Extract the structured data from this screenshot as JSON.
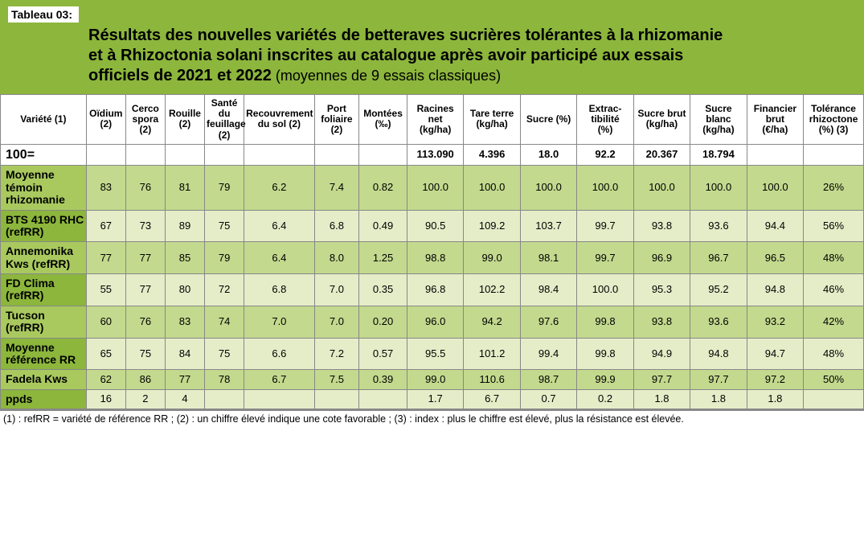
{
  "header": {
    "tab": "Tableau 03:",
    "title_l1": "Résultats des nouvelles variétés de betteraves sucrières tolérantes à la rhizomanie",
    "title_l2": "et à Rhizoctonia solani inscrites au catalogue après avoir participé aux essais",
    "title_l3": "officiels de 2021 et 2022",
    "title_sub": " (moyennes de 9 essais classiques)"
  },
  "columns": [
    "Variété (1)",
    "Oïdium (2)",
    "Cerco spora (2)",
    "Rouille (2)",
    "Santé du feuillage (2)",
    "Recouvrement du sol (2)",
    "Port foliaire (2)",
    "Montées (‰)",
    "Racines net (kg/ha)",
    "Tare terre (kg/ha)",
    "Sucre (%)",
    "Extrac-tibilité (%)",
    "Sucre brut (kg/ha)",
    "Sucre blanc (kg/ha)",
    "Financier brut (€/ha)",
    "Tolérance rhizoctone (%) (3)"
  ],
  "rows": [
    {
      "label": "100=",
      "cls": "r100",
      "cells": [
        "",
        "",
        "",
        "",
        "",
        "",
        "",
        "113.090",
        "4.396",
        "18.0",
        "92.2",
        "20.367",
        "18.794",
        "",
        ""
      ]
    },
    {
      "label": "Moyenne témoin rhizomanie",
      "cls": "alt0 altL0",
      "cells": [
        "83",
        "76",
        "81",
        "79",
        "6.2",
        "7.4",
        "0.82",
        "100.0",
        "100.0",
        "100.0",
        "100.0",
        "100.0",
        "100.0",
        "100.0",
        "26%"
      ]
    },
    {
      "label": "BTS 4190 RHC (refRR)",
      "cls": "alt1 altL1",
      "cells": [
        "67",
        "73",
        "89",
        "75",
        "6.4",
        "6.8",
        "0.49",
        "90.5",
        "109.2",
        "103.7",
        "99.7",
        "93.8",
        "93.6",
        "94.4",
        "56%"
      ]
    },
    {
      "label": "Annemonika Kws (refRR)",
      "cls": "alt0 altL0",
      "cells": [
        "77",
        "77",
        "85",
        "79",
        "6.4",
        "8.0",
        "1.25",
        "98.8",
        "99.0",
        "98.1",
        "99.7",
        "96.9",
        "96.7",
        "96.5",
        "48%"
      ]
    },
    {
      "label": "FD Clima (refRR)",
      "cls": "alt1 altL1",
      "cells": [
        "55",
        "77",
        "80",
        "72",
        "6.8",
        "7.0",
        "0.35",
        "96.8",
        "102.2",
        "98.4",
        "100.0",
        "95.3",
        "95.2",
        "94.8",
        "46%"
      ]
    },
    {
      "label": "Tucson (refRR)",
      "cls": "alt0 altL0",
      "cells": [
        "60",
        "76",
        "83",
        "74",
        "7.0",
        "7.0",
        "0.20",
        "96.0",
        "94.2",
        "97.6",
        "99.8",
        "93.8",
        "93.6",
        "93.2",
        "42%"
      ]
    },
    {
      "label": "Moyenne référence RR",
      "cls": "alt1 altL1",
      "cells": [
        "65",
        "75",
        "84",
        "75",
        "6.6",
        "7.2",
        "0.57",
        "95.5",
        "101.2",
        "99.4",
        "99.8",
        "94.9",
        "94.8",
        "94.7",
        "48%"
      ]
    },
    {
      "label": "Fadela Kws",
      "cls": "alt0 altL0",
      "cells": [
        "62",
        "86",
        "77",
        "78",
        "6.7",
        "7.5",
        "0.39",
        "99.0",
        "110.6",
        "98.7",
        "99.9",
        "97.7",
        "97.7",
        "97.2",
        "50%"
      ]
    },
    {
      "label": "ppds",
      "cls": "alt1 altL1",
      "cells": [
        "16",
        "2",
        "4",
        "",
        "",
        "",
        "",
        "1.7",
        "6.7",
        "0.7",
        "0.2",
        "1.8",
        "1.8",
        "1.8",
        ""
      ]
    }
  ],
  "footnote": "(1) : refRR = variété de référence RR ; (2) : un chiffre élevé indique une cote favorable ; (3) : index : plus le chiffre est élevé, plus la résistance est élevée.",
  "colors": {
    "band": "#8cb63c",
    "alt_dark": "#c3d98e",
    "alt_light": "#e4edc8",
    "label_bg_a": "#a9c95f",
    "label_bg_b": "#8cb63c",
    "border": "#888888"
  }
}
